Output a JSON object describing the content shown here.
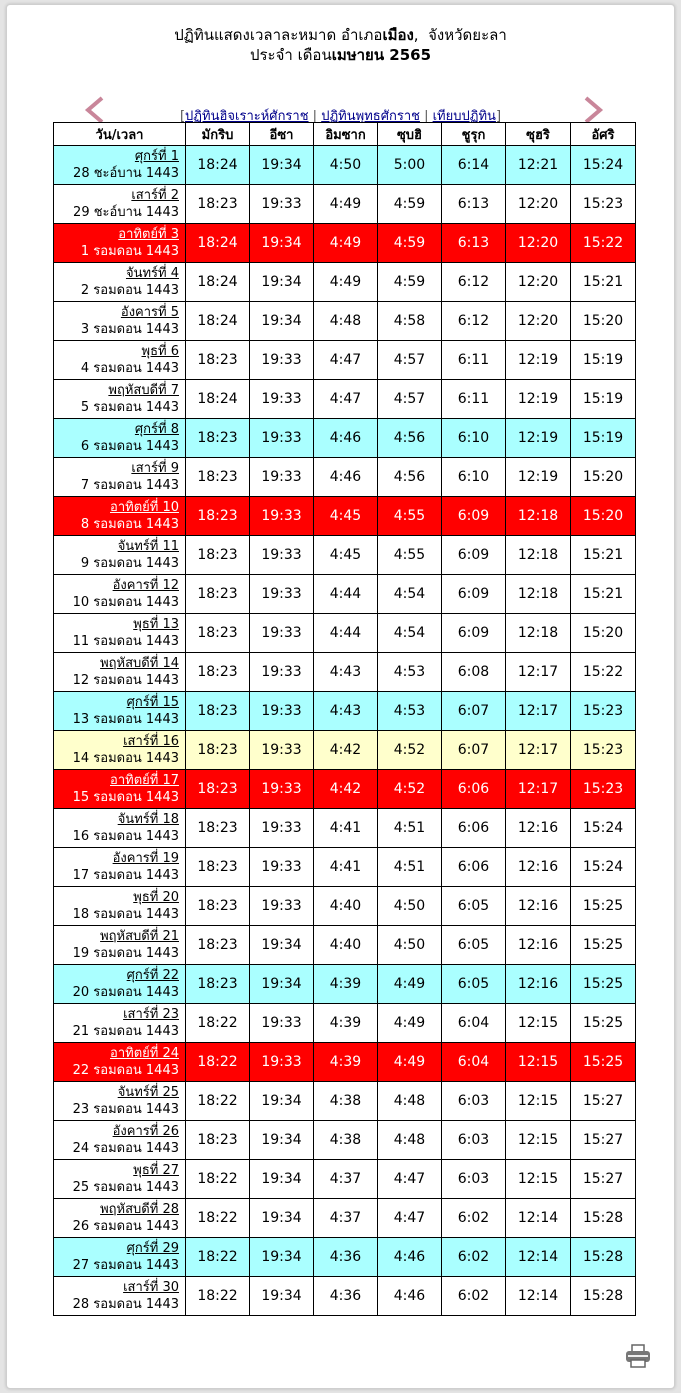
{
  "header": {
    "line1_prefix": "ปฏิทินแสดงเวลาละหมาด อำเภอ",
    "amphoe": "เมือง",
    "line1_mid": ",  จังหวัด",
    "province": "ยะลา",
    "line2_prefix": "ประจำ เดือน",
    "month_year": "เมษายน 2565"
  },
  "nav": {
    "bracket_open": "[",
    "hijri_link": "ปฏิทินฮิจเราะห์ศักราช",
    "buddhist_link": "ปฏิทินพุทธศักราช",
    "compare_link": "เทียบปฏิทิน",
    "separator": " | ",
    "bracket_close": "]"
  },
  "columns": [
    "วัน/เวลา",
    "มักริบ",
    "อีซา",
    "อิมซาก",
    "ซุบฮิ",
    "ชูรุก",
    "ซุฮริ",
    "อัศริ"
  ],
  "rows": [
    {
      "day": "ศุกร์ที่ 1",
      "hijri": "28 ชะอ์บาน 1443",
      "times": [
        "18:24",
        "19:34",
        "4:50",
        "5:00",
        "6:14",
        "12:21",
        "15:24"
      ],
      "type": "fri"
    },
    {
      "day": "เสาร์ที่ 2",
      "hijri": "29 ชะอ์บาน 1443",
      "times": [
        "18:23",
        "19:33",
        "4:49",
        "4:59",
        "6:13",
        "12:20",
        "15:23"
      ],
      "type": ""
    },
    {
      "day": "อาทิตย์ที่ 3",
      "hijri": "1 รอมดอน 1443",
      "times": [
        "18:24",
        "19:34",
        "4:49",
        "4:59",
        "6:13",
        "12:20",
        "15:22"
      ],
      "type": "sun"
    },
    {
      "day": "จันทร์ที่ 4",
      "hijri": "2 รอมดอน 1443",
      "times": [
        "18:24",
        "19:34",
        "4:49",
        "4:59",
        "6:12",
        "12:20",
        "15:21"
      ],
      "type": ""
    },
    {
      "day": "อังคารที่ 5",
      "hijri": "3 รอมดอน 1443",
      "times": [
        "18:24",
        "19:34",
        "4:48",
        "4:58",
        "6:12",
        "12:20",
        "15:20"
      ],
      "type": ""
    },
    {
      "day": "พุธที่ 6",
      "hijri": "4 รอมดอน 1443",
      "times": [
        "18:23",
        "19:33",
        "4:47",
        "4:57",
        "6:11",
        "12:19",
        "15:19"
      ],
      "type": ""
    },
    {
      "day": "พฤหัสบดีที่ 7",
      "hijri": "5 รอมดอน 1443",
      "times": [
        "18:24",
        "19:33",
        "4:47",
        "4:57",
        "6:11",
        "12:19",
        "15:19"
      ],
      "type": ""
    },
    {
      "day": "ศุกร์ที่ 8",
      "hijri": "6 รอมดอน 1443",
      "times": [
        "18:23",
        "19:33",
        "4:46",
        "4:56",
        "6:10",
        "12:19",
        "15:19"
      ],
      "type": "fri"
    },
    {
      "day": "เสาร์ที่ 9",
      "hijri": "7 รอมดอน 1443",
      "times": [
        "18:23",
        "19:33",
        "4:46",
        "4:56",
        "6:10",
        "12:19",
        "15:20"
      ],
      "type": ""
    },
    {
      "day": "อาทิตย์ที่ 10",
      "hijri": "8 รอมดอน 1443",
      "times": [
        "18:23",
        "19:33",
        "4:45",
        "4:55",
        "6:09",
        "12:18",
        "15:20"
      ],
      "type": "sun"
    },
    {
      "day": "จันทร์ที่ 11",
      "hijri": "9 รอมดอน 1443",
      "times": [
        "18:23",
        "19:33",
        "4:45",
        "4:55",
        "6:09",
        "12:18",
        "15:21"
      ],
      "type": ""
    },
    {
      "day": "อังคารที่ 12",
      "hijri": "10 รอมดอน 1443",
      "times": [
        "18:23",
        "19:33",
        "4:44",
        "4:54",
        "6:09",
        "12:18",
        "15:21"
      ],
      "type": ""
    },
    {
      "day": "พุธที่ 13",
      "hijri": "11 รอมดอน 1443",
      "times": [
        "18:23",
        "19:33",
        "4:44",
        "4:54",
        "6:09",
        "12:18",
        "15:20"
      ],
      "type": ""
    },
    {
      "day": "พฤหัสบดีที่ 14",
      "hijri": "12 รอมดอน 1443",
      "times": [
        "18:23",
        "19:33",
        "4:43",
        "4:53",
        "6:08",
        "12:17",
        "15:22"
      ],
      "type": ""
    },
    {
      "day": "ศุกร์ที่ 15",
      "hijri": "13 รอมดอน 1443",
      "times": [
        "18:23",
        "19:33",
        "4:43",
        "4:53",
        "6:07",
        "12:17",
        "15:23"
      ],
      "type": "fri"
    },
    {
      "day": "เสาร์ที่ 16",
      "hijri": "14 รอมดอน 1443",
      "times": [
        "18:23",
        "19:33",
        "4:42",
        "4:52",
        "6:07",
        "12:17",
        "15:23"
      ],
      "type": "today"
    },
    {
      "day": "อาทิตย์ที่ 17",
      "hijri": "15 รอมดอน 1443",
      "times": [
        "18:23",
        "19:33",
        "4:42",
        "4:52",
        "6:06",
        "12:17",
        "15:23"
      ],
      "type": "sun"
    },
    {
      "day": "จันทร์ที่ 18",
      "hijri": "16 รอมดอน 1443",
      "times": [
        "18:23",
        "19:33",
        "4:41",
        "4:51",
        "6:06",
        "12:16",
        "15:24"
      ],
      "type": ""
    },
    {
      "day": "อังคารที่ 19",
      "hijri": "17 รอมดอน 1443",
      "times": [
        "18:23",
        "19:33",
        "4:41",
        "4:51",
        "6:06",
        "12:16",
        "15:24"
      ],
      "type": ""
    },
    {
      "day": "พุธที่ 20",
      "hijri": "18 รอมดอน 1443",
      "times": [
        "18:23",
        "19:33",
        "4:40",
        "4:50",
        "6:05",
        "12:16",
        "15:25"
      ],
      "type": ""
    },
    {
      "day": "พฤหัสบดีที่ 21",
      "hijri": "19 รอมดอน 1443",
      "times": [
        "18:23",
        "19:34",
        "4:40",
        "4:50",
        "6:05",
        "12:16",
        "15:25"
      ],
      "type": ""
    },
    {
      "day": "ศุกร์ที่ 22",
      "hijri": "20 รอมดอน 1443",
      "times": [
        "18:23",
        "19:34",
        "4:39",
        "4:49",
        "6:05",
        "12:16",
        "15:25"
      ],
      "type": "fri"
    },
    {
      "day": "เสาร์ที่ 23",
      "hijri": "21 รอมดอน 1443",
      "times": [
        "18:22",
        "19:33",
        "4:39",
        "4:49",
        "6:04",
        "12:15",
        "15:25"
      ],
      "type": ""
    },
    {
      "day": "อาทิตย์ที่ 24",
      "hijri": "22 รอมดอน 1443",
      "times": [
        "18:22",
        "19:33",
        "4:39",
        "4:49",
        "6:04",
        "12:15",
        "15:25"
      ],
      "type": "sun"
    },
    {
      "day": "จันทร์ที่ 25",
      "hijri": "23 รอมดอน 1443",
      "times": [
        "18:22",
        "19:34",
        "4:38",
        "4:48",
        "6:03",
        "12:15",
        "15:27"
      ],
      "type": ""
    },
    {
      "day": "อังคารที่ 26",
      "hijri": "24 รอมดอน 1443",
      "times": [
        "18:23",
        "19:34",
        "4:38",
        "4:48",
        "6:03",
        "12:15",
        "15:27"
      ],
      "type": ""
    },
    {
      "day": "พุธที่ 27",
      "hijri": "25 รอมดอน 1443",
      "times": [
        "18:22",
        "19:34",
        "4:37",
        "4:47",
        "6:03",
        "12:15",
        "15:27"
      ],
      "type": ""
    },
    {
      "day": "พฤหัสบดีที่ 28",
      "hijri": "26 รอมดอน 1443",
      "times": [
        "18:22",
        "19:34",
        "4:37",
        "4:47",
        "6:02",
        "12:14",
        "15:28"
      ],
      "type": ""
    },
    {
      "day": "ศุกร์ที่ 29",
      "hijri": "27 รอมดอน 1443",
      "times": [
        "18:22",
        "19:34",
        "4:36",
        "4:46",
        "6:02",
        "12:14",
        "15:28"
      ],
      "type": "fri"
    },
    {
      "day": "เสาร์ที่ 30",
      "hijri": "28 รอมดอน 1443",
      "times": [
        "18:22",
        "19:34",
        "4:36",
        "4:46",
        "6:02",
        "12:14",
        "15:28"
      ],
      "type": ""
    }
  ],
  "colors": {
    "friday": "#aaffff",
    "sunday": "#ff0000",
    "today": "#ffffcc",
    "arrow": "#c9869a"
  },
  "icons": {
    "prev": "chevron-left-icon",
    "next": "chevron-right-icon",
    "print": "printer-icon"
  }
}
